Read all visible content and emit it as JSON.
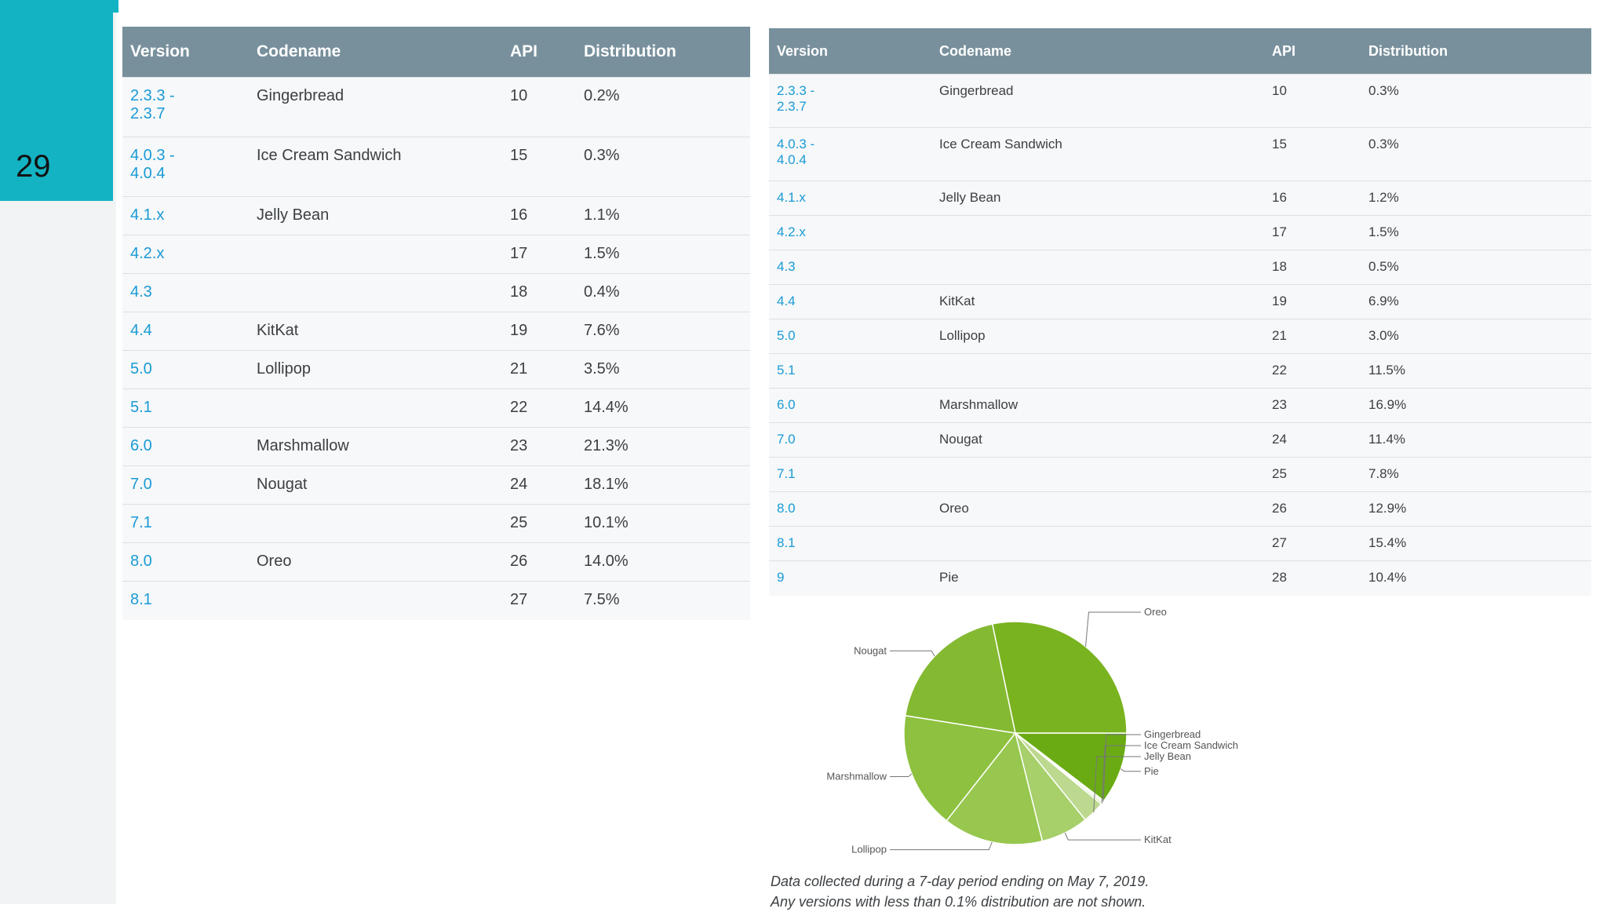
{
  "slide": {
    "number": "29"
  },
  "headers": [
    "Version",
    "Codename",
    "API",
    "Distribution"
  ],
  "table_left": {
    "rows": [
      {
        "version": "2.3.3 -\n2.3.7",
        "codename": "Gingerbread",
        "api": "10",
        "dist": "0.2%"
      },
      {
        "version": "4.0.3 -\n4.0.4",
        "codename": "Ice Cream Sandwich",
        "api": "15",
        "dist": "0.3%"
      },
      {
        "version": "4.1.x",
        "codename": "Jelly Bean",
        "api": "16",
        "dist": "1.1%"
      },
      {
        "version": "4.2.x",
        "codename": "",
        "api": "17",
        "dist": "1.5%"
      },
      {
        "version": "4.3",
        "codename": "",
        "api": "18",
        "dist": "0.4%"
      },
      {
        "version": "4.4",
        "codename": "KitKat",
        "api": "19",
        "dist": "7.6%"
      },
      {
        "version": "5.0",
        "codename": "Lollipop",
        "api": "21",
        "dist": "3.5%"
      },
      {
        "version": "5.1",
        "codename": "",
        "api": "22",
        "dist": "14.4%"
      },
      {
        "version": "6.0",
        "codename": "Marshmallow",
        "api": "23",
        "dist": "21.3%"
      },
      {
        "version": "7.0",
        "codename": "Nougat",
        "api": "24",
        "dist": "18.1%"
      },
      {
        "version": "7.1",
        "codename": "",
        "api": "25",
        "dist": "10.1%"
      },
      {
        "version": "8.0",
        "codename": "Oreo",
        "api": "26",
        "dist": "14.0%"
      },
      {
        "version": "8.1",
        "codename": "",
        "api": "27",
        "dist": "7.5%"
      }
    ]
  },
  "table_right": {
    "rows": [
      {
        "version": "2.3.3 -\n2.3.7",
        "codename": "Gingerbread",
        "api": "10",
        "dist": "0.3%"
      },
      {
        "version": "4.0.3 -\n4.0.4",
        "codename": "Ice Cream Sandwich",
        "api": "15",
        "dist": "0.3%"
      },
      {
        "version": "4.1.x",
        "codename": "Jelly Bean",
        "api": "16",
        "dist": "1.2%"
      },
      {
        "version": "4.2.x",
        "codename": "",
        "api": "17",
        "dist": "1.5%"
      },
      {
        "version": "4.3",
        "codename": "",
        "api": "18",
        "dist": "0.5%"
      },
      {
        "version": "4.4",
        "codename": "KitKat",
        "api": "19",
        "dist": "6.9%"
      },
      {
        "version": "5.0",
        "codename": "Lollipop",
        "api": "21",
        "dist": "3.0%"
      },
      {
        "version": "5.1",
        "codename": "",
        "api": "22",
        "dist": "11.5%"
      },
      {
        "version": "6.0",
        "codename": "Marshmallow",
        "api": "23",
        "dist": "16.9%"
      },
      {
        "version": "7.0",
        "codename": "Nougat",
        "api": "24",
        "dist": "11.4%"
      },
      {
        "version": "7.1",
        "codename": "",
        "api": "25",
        "dist": "7.8%"
      },
      {
        "version": "8.0",
        "codename": "Oreo",
        "api": "26",
        "dist": "12.9%"
      },
      {
        "version": "8.1",
        "codename": "",
        "api": "27",
        "dist": "15.4%"
      },
      {
        "version": "9",
        "codename": "Pie",
        "api": "28",
        "dist": "10.4%"
      }
    ]
  },
  "chart_data": {
    "type": "pie",
    "slices": [
      {
        "label": "Pie",
        "value": 10.4,
        "color": "#6aab14"
      },
      {
        "label": "Gingerbread",
        "value": 0.3,
        "color": "#e7f0d6"
      },
      {
        "label": "Ice Cream Sandwich",
        "value": 0.3,
        "color": "#d3e6b4"
      },
      {
        "label": "Jelly Bean",
        "value": 3.2,
        "color": "#bcd98f"
      },
      {
        "label": "KitKat",
        "value": 6.9,
        "color": "#a7cf6a"
      },
      {
        "label": "Lollipop",
        "value": 14.5,
        "color": "#97c74e"
      },
      {
        "label": "Marshmallow",
        "value": 16.9,
        "color": "#8dc13f"
      },
      {
        "label": "Nougat",
        "value": 19.2,
        "color": "#84b932"
      },
      {
        "label": "Oreo",
        "value": 28.3,
        "color": "#79b31f"
      }
    ]
  },
  "footnote": {
    "line1": "Data collected during a 7-day period ending on May 7, 2019.",
    "line2": "Any versions with less than 0.1% distribution are not shown."
  }
}
